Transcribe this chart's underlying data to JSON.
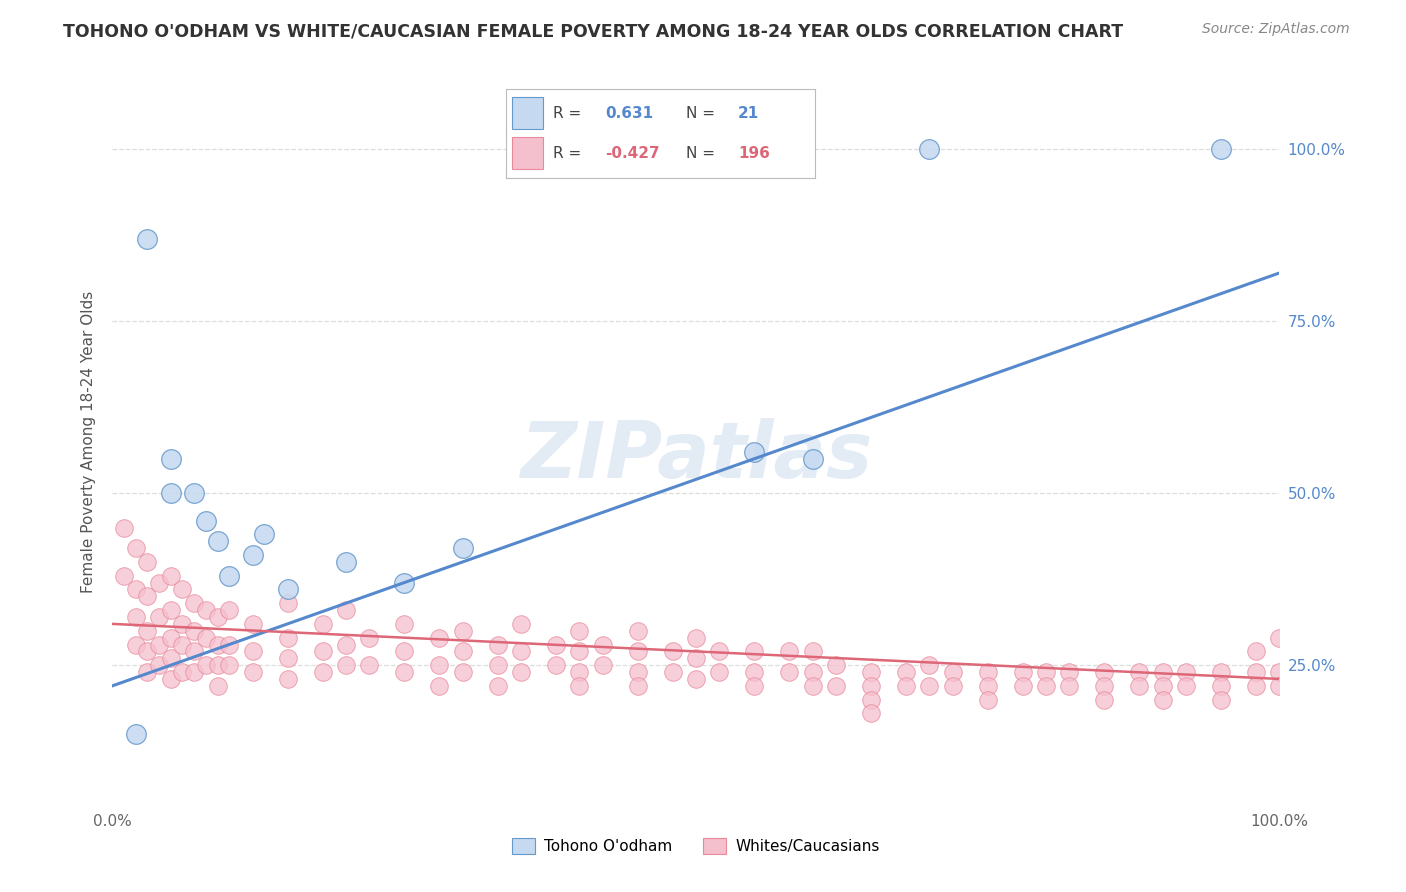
{
  "title": "TOHONO O'ODHAM VS WHITE/CAUCASIAN FEMALE POVERTY AMONG 18-24 YEAR OLDS CORRELATION CHART",
  "source": "Source: ZipAtlas.com",
  "ylabel": "Female Poverty Among 18-24 Year Olds",
  "xlim": [
    0,
    100
  ],
  "ylim": [
    5,
    110
  ],
  "yticks_right": [
    25,
    50,
    75
  ],
  "legend_blue_R": "0.631",
  "legend_blue_N": "21",
  "legend_pink_R": "-0.427",
  "legend_pink_N": "196",
  "blue_fill": "#c5d9f0",
  "pink_fill": "#f5c0ce",
  "blue_edge": "#6699cc",
  "pink_edge": "#e88898",
  "blue_line_color": "#5588cc",
  "pink_line_color": "#dd6677",
  "watermark": "ZIPatlas",
  "grid_color": "#dddddd",
  "blue_scatter": [
    [
      3,
      87
    ],
    [
      5,
      55
    ],
    [
      5,
      50
    ],
    [
      7,
      50
    ],
    [
      8,
      46
    ],
    [
      9,
      43
    ],
    [
      10,
      38
    ],
    [
      12,
      41
    ],
    [
      13,
      44
    ],
    [
      15,
      36
    ],
    [
      20,
      40
    ],
    [
      25,
      37
    ],
    [
      30,
      42
    ],
    [
      55,
      56
    ],
    [
      60,
      55
    ],
    [
      95,
      100
    ],
    [
      70,
      100
    ]
  ],
  "blue_extra_left": [
    [
      2,
      15
    ]
  ],
  "pink_scatter_left": [
    [
      1,
      45
    ],
    [
      1,
      38
    ],
    [
      2,
      42
    ],
    [
      2,
      36
    ],
    [
      2,
      32
    ],
    [
      2,
      28
    ],
    [
      3,
      40
    ],
    [
      3,
      35
    ],
    [
      3,
      30
    ],
    [
      3,
      27
    ],
    [
      3,
      24
    ],
    [
      4,
      37
    ],
    [
      4,
      32
    ],
    [
      4,
      28
    ],
    [
      4,
      25
    ],
    [
      5,
      38
    ],
    [
      5,
      33
    ],
    [
      5,
      29
    ],
    [
      5,
      26
    ],
    [
      5,
      23
    ],
    [
      6,
      36
    ],
    [
      6,
      31
    ],
    [
      6,
      28
    ],
    [
      6,
      24
    ],
    [
      7,
      34
    ],
    [
      7,
      30
    ],
    [
      7,
      27
    ],
    [
      7,
      24
    ],
    [
      8,
      33
    ],
    [
      8,
      29
    ],
    [
      8,
      25
    ],
    [
      9,
      32
    ],
    [
      9,
      28
    ],
    [
      9,
      25
    ],
    [
      9,
      22
    ]
  ],
  "pink_scatter_mid": [
    [
      10,
      33
    ],
    [
      10,
      28
    ],
    [
      10,
      25
    ],
    [
      12,
      31
    ],
    [
      12,
      27
    ],
    [
      12,
      24
    ],
    [
      15,
      34
    ],
    [
      15,
      29
    ],
    [
      15,
      26
    ],
    [
      15,
      23
    ],
    [
      18,
      31
    ],
    [
      18,
      27
    ],
    [
      18,
      24
    ],
    [
      20,
      33
    ],
    [
      20,
      28
    ],
    [
      20,
      25
    ],
    [
      22,
      29
    ],
    [
      22,
      25
    ],
    [
      25,
      31
    ],
    [
      25,
      27
    ],
    [
      25,
      24
    ],
    [
      28,
      29
    ],
    [
      28,
      25
    ],
    [
      28,
      22
    ],
    [
      30,
      30
    ],
    [
      30,
      27
    ],
    [
      30,
      24
    ],
    [
      33,
      28
    ],
    [
      33,
      25
    ],
    [
      33,
      22
    ],
    [
      35,
      31
    ],
    [
      35,
      27
    ],
    [
      35,
      24
    ],
    [
      38,
      28
    ],
    [
      38,
      25
    ],
    [
      40,
      30
    ],
    [
      40,
      27
    ],
    [
      40,
      24
    ],
    [
      40,
      22
    ],
    [
      42,
      28
    ],
    [
      42,
      25
    ],
    [
      45,
      30
    ],
    [
      45,
      27
    ],
    [
      45,
      24
    ],
    [
      45,
      22
    ],
    [
      48,
      27
    ],
    [
      48,
      24
    ],
    [
      50,
      29
    ],
    [
      50,
      26
    ],
    [
      50,
      23
    ]
  ],
  "pink_scatter_right": [
    [
      52,
      27
    ],
    [
      52,
      24
    ],
    [
      55,
      27
    ],
    [
      55,
      24
    ],
    [
      55,
      22
    ],
    [
      58,
      27
    ],
    [
      58,
      24
    ],
    [
      60,
      27
    ],
    [
      60,
      24
    ],
    [
      60,
      22
    ],
    [
      62,
      25
    ],
    [
      62,
      22
    ],
    [
      65,
      24
    ],
    [
      65,
      22
    ],
    [
      65,
      20
    ],
    [
      68,
      24
    ],
    [
      68,
      22
    ],
    [
      70,
      25
    ],
    [
      70,
      22
    ],
    [
      72,
      24
    ],
    [
      72,
      22
    ],
    [
      75,
      24
    ],
    [
      75,
      22
    ],
    [
      75,
      20
    ],
    [
      78,
      24
    ],
    [
      78,
      22
    ],
    [
      80,
      24
    ],
    [
      80,
      22
    ],
    [
      82,
      24
    ],
    [
      82,
      22
    ],
    [
      85,
      24
    ],
    [
      85,
      22
    ],
    [
      85,
      20
    ],
    [
      88,
      24
    ],
    [
      88,
      22
    ],
    [
      90,
      24
    ],
    [
      90,
      22
    ],
    [
      90,
      20
    ],
    [
      92,
      24
    ],
    [
      92,
      22
    ],
    [
      95,
      24
    ],
    [
      95,
      22
    ],
    [
      95,
      20
    ],
    [
      98,
      27
    ],
    [
      98,
      24
    ],
    [
      98,
      22
    ],
    [
      100,
      29
    ],
    [
      100,
      24
    ],
    [
      100,
      22
    ],
    [
      65,
      18
    ]
  ],
  "blue_line": {
    "x0": 0,
    "x1": 100,
    "y0": 22,
    "y1": 82
  },
  "pink_line": {
    "x0": 0,
    "x1": 100,
    "y0": 31,
    "y1": 23
  }
}
